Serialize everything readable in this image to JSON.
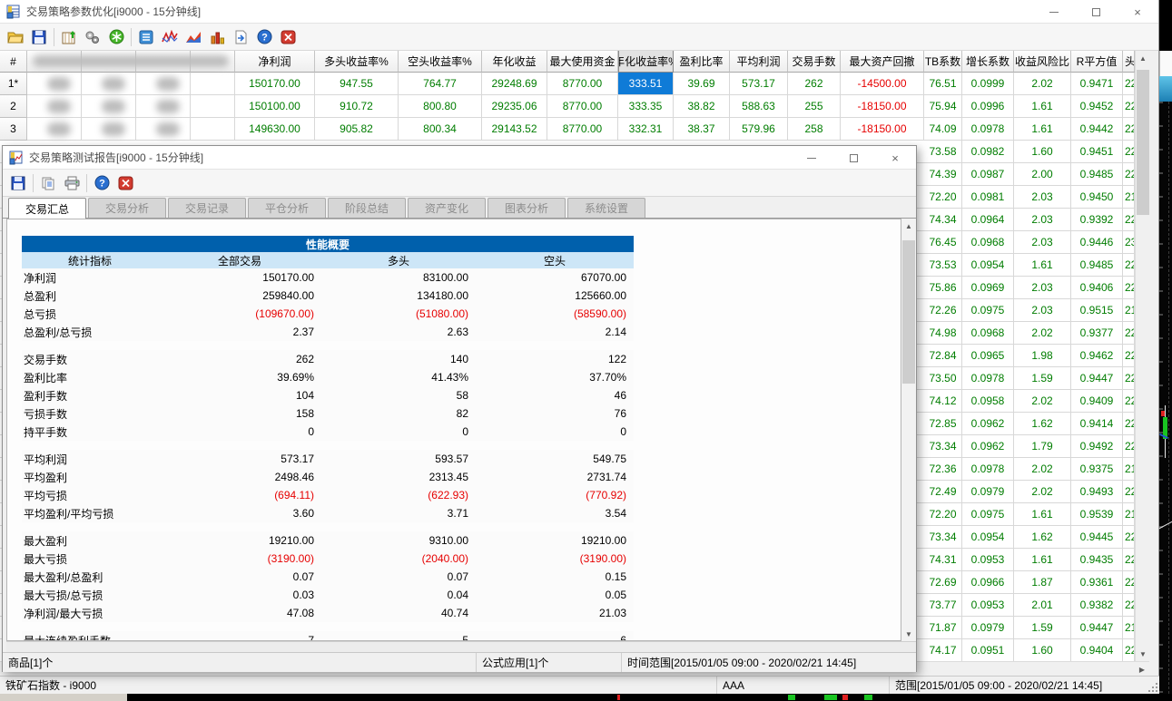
{
  "main_window": {
    "title": "交易策略参数优化[i9000 - 15分钟线]",
    "toolbar_icons": [
      "open-folder",
      "save",
      "optimization-table",
      "gears",
      "calculate",
      "report-list",
      "performance-curve",
      "area-chart",
      "bar-chart",
      "export",
      "help",
      "close"
    ],
    "table": {
      "columns": [
        "#",
        "",
        "",
        "",
        "",
        "净利润",
        "多头收益率%",
        "空头收益率%",
        "年化收益",
        "最大使用资金",
        "年化收益率%",
        "盈利比率",
        "平均利润",
        "交易手数",
        "最大资产回撤",
        "TB系数",
        "增长系数",
        "收益风险比",
        "R平方值",
        "头寸"
      ],
      "pressed_column": "年化收益率%",
      "rows": [
        {
          "num": "1*",
          "values": [
            "150170.00",
            "947.55",
            "764.77",
            "29248.69",
            "8770.00",
            "333.51",
            "39.69",
            "573.17",
            "262",
            "-14500.00",
            "76.51",
            "0.0999",
            "2.02",
            "0.9471",
            "22"
          ],
          "selected_value": "333.51"
        },
        {
          "num": "2",
          "values": [
            "150100.00",
            "910.72",
            "800.80",
            "29235.06",
            "8770.00",
            "333.35",
            "38.82",
            "588.63",
            "255",
            "-18150.00",
            "75.94",
            "0.0996",
            "1.61",
            "0.9452",
            "22"
          ]
        },
        {
          "num": "3",
          "values": [
            "149630.00",
            "905.82",
            "800.34",
            "29143.52",
            "8770.00",
            "332.31",
            "38.37",
            "579.96",
            "258",
            "-18150.00",
            "74.09",
            "0.0978",
            "1.61",
            "0.9442",
            "22"
          ]
        }
      ],
      "partial_rows": [
        [
          "73.58",
          "0.0982",
          "1.60",
          "0.9451",
          "22"
        ],
        [
          "74.39",
          "0.0987",
          "2.00",
          "0.9485",
          "22"
        ],
        [
          "72.20",
          "0.0981",
          "2.03",
          "0.9450",
          "21"
        ],
        [
          "74.34",
          "0.0964",
          "2.03",
          "0.9392",
          "22"
        ],
        [
          "76.45",
          "0.0968",
          "2.03",
          "0.9446",
          "23"
        ],
        [
          "73.53",
          "0.0954",
          "1.61",
          "0.9485",
          "22"
        ],
        [
          "75.86",
          "0.0969",
          "2.03",
          "0.9406",
          "22"
        ],
        [
          "72.26",
          "0.0975",
          "2.03",
          "0.9515",
          "21"
        ],
        [
          "74.98",
          "0.0968",
          "2.02",
          "0.9377",
          "22"
        ],
        [
          "72.84",
          "0.0965",
          "1.98",
          "0.9462",
          "22"
        ],
        [
          "73.50",
          "0.0978",
          "1.59",
          "0.9447",
          "22"
        ],
        [
          "74.12",
          "0.0958",
          "2.02",
          "0.9409",
          "22"
        ],
        [
          "72.85",
          "0.0962",
          "1.62",
          "0.9414",
          "22"
        ],
        [
          "73.34",
          "0.0962",
          "1.79",
          "0.9492",
          "22"
        ],
        [
          "72.36",
          "0.0978",
          "2.02",
          "0.9375",
          "21"
        ],
        [
          "72.49",
          "0.0979",
          "2.02",
          "0.9493",
          "22"
        ],
        [
          "72.20",
          "0.0975",
          "1.61",
          "0.9539",
          "21"
        ],
        [
          "73.34",
          "0.0954",
          "1.62",
          "0.9445",
          "22"
        ],
        [
          "74.31",
          "0.0953",
          "1.61",
          "0.9435",
          "22"
        ],
        [
          "72.69",
          "0.0966",
          "1.87",
          "0.9361",
          "22"
        ],
        [
          "73.77",
          "0.0953",
          "2.01",
          "0.9382",
          "22"
        ],
        [
          "71.87",
          "0.0979",
          "1.59",
          "0.9447",
          "21"
        ],
        [
          "74.17",
          "0.0951",
          "1.60",
          "0.9404",
          "22"
        ]
      ]
    },
    "status_bar": {
      "left": "铁矿石指数 - i9000",
      "middle": "AAA",
      "right": "范围[2015/01/05 09:00 - 2020/02/21 14:45]"
    },
    "colors": {
      "selected_cell": "#0f7bd7",
      "positive": "#007d00",
      "negative": "#e60000"
    }
  },
  "report_window": {
    "title": "交易策略测试报告[i9000 - 15分钟线]",
    "toolbar_icons": [
      "save",
      "copy",
      "print",
      "help",
      "close"
    ],
    "tabs": [
      "交易汇总",
      "交易分析",
      "交易记录",
      "平仓分析",
      "阶段总结",
      "资产变化",
      "图表分析",
      "系统设置"
    ],
    "active_tab": "交易汇总",
    "summary": {
      "banner": "性能概要",
      "columns": [
        "统计指标",
        "全部交易",
        "多头",
        "空头"
      ],
      "banner_color": "#0060ac",
      "header_color": "#cde6f7",
      "blocks": [
        [
          [
            "净利润",
            "150170.00",
            "83100.00",
            "67070.00"
          ],
          [
            "总盈利",
            "259840.00",
            "134180.00",
            "125660.00"
          ],
          [
            "总亏损",
            "(109670.00)",
            "(51080.00)",
            "(58590.00)"
          ],
          [
            "总盈利/总亏损",
            "2.37",
            "2.63",
            "2.14"
          ]
        ],
        [
          [
            "交易手数",
            "262",
            "140",
            "122"
          ],
          [
            "盈利比率",
            "39.69%",
            "41.43%",
            "37.70%"
          ],
          [
            "盈利手数",
            "104",
            "58",
            "46"
          ],
          [
            "亏损手数",
            "158",
            "82",
            "76"
          ],
          [
            "持平手数",
            "0",
            "0",
            "0"
          ]
        ],
        [
          [
            "平均利润",
            "573.17",
            "593.57",
            "549.75"
          ],
          [
            "平均盈利",
            "2498.46",
            "2313.45",
            "2731.74"
          ],
          [
            "平均亏损",
            "(694.11)",
            "(622.93)",
            "(770.92)"
          ],
          [
            "平均盈利/平均亏损",
            "3.60",
            "3.71",
            "3.54"
          ]
        ],
        [
          [
            "最大盈利",
            "19210.00",
            "9310.00",
            "19210.00"
          ],
          [
            "最大亏损",
            "(3190.00)",
            "(2040.00)",
            "(3190.00)"
          ],
          [
            "最大盈利/总盈利",
            "0.07",
            "0.07",
            "0.15"
          ],
          [
            "最大亏损/总亏损",
            "0.03",
            "0.04",
            "0.05"
          ],
          [
            "净利润/最大亏损",
            "47.08",
            "40.74",
            "21.03"
          ]
        ]
      ],
      "partial_row": [
        "最大连续盈利手数",
        "7",
        "5",
        "6"
      ]
    },
    "status_bar": {
      "left": "商品[1]个",
      "middle": "公式应用[1]个",
      "right": "时间范围[2015/01/05 09:00 - 2020/02/21 14:45]"
    }
  }
}
